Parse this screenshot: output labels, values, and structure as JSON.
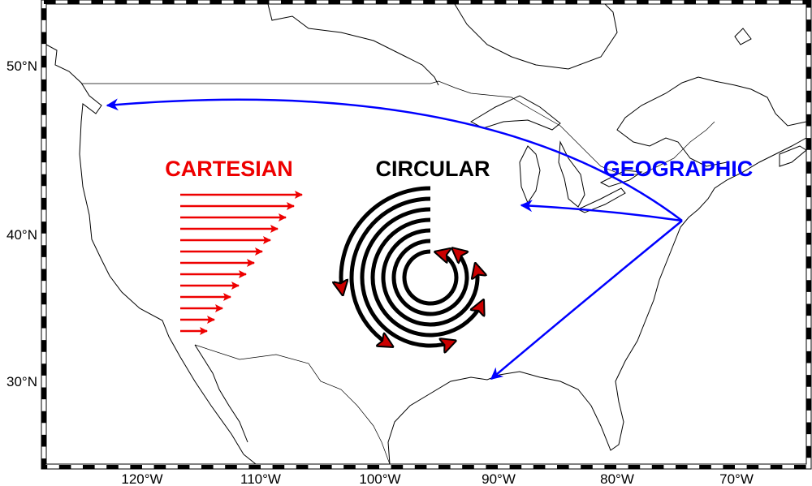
{
  "labels": {
    "cartesian": "CARTESIAN",
    "circular": "CIRCULAR",
    "geographic": "GEOGRAPHIC"
  },
  "axes": {
    "latitude": [
      "50°N",
      "40°N",
      "30°N"
    ],
    "longitude": [
      "120°W",
      "110°W",
      "100°W",
      "90°W",
      "80°W",
      "70°W"
    ]
  }
}
